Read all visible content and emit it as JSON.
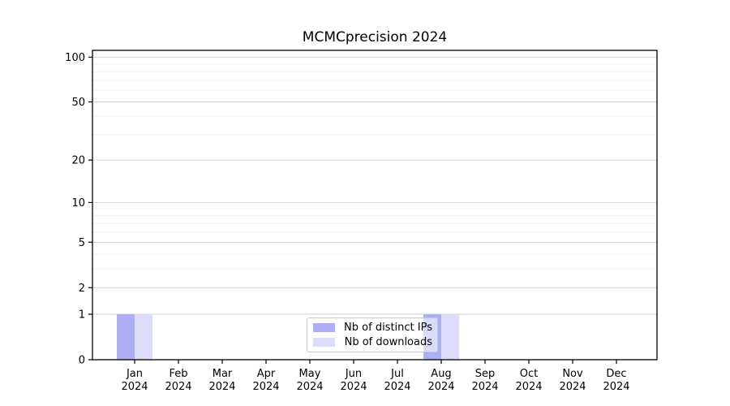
{
  "figure": {
    "title": "MCMCprecision 2024"
  },
  "chart_data": {
    "type": "bar",
    "title": "MCMCprecision 2024",
    "categories": [
      "Jan 2024",
      "Feb 2024",
      "Mar 2024",
      "Apr 2024",
      "May 2024",
      "Jun 2024",
      "Jul 2024",
      "Aug 2024",
      "Sep 2024",
      "Oct 2024",
      "Nov 2024",
      "Dec 2024"
    ],
    "series": [
      {
        "name": "Nb of distinct IPs",
        "color": "#aeaef6",
        "values": [
          1,
          0,
          0,
          0,
          0,
          0,
          0,
          1,
          0,
          0,
          0,
          0
        ]
      },
      {
        "name": "Nb of downloads",
        "color": "#dcdcf8",
        "values": [
          1,
          0,
          0,
          0,
          0,
          0,
          0,
          1,
          0,
          0,
          0,
          0
        ]
      }
    ],
    "xlabel": "",
    "ylabel": "",
    "yscale": "log1p",
    "ylim": [
      0,
      111
    ],
    "yticks": [
      0,
      1,
      2,
      5,
      10,
      20,
      50,
      100
    ],
    "yticks_minor": [
      3,
      4,
      6,
      7,
      8,
      9,
      30,
      40,
      60,
      70,
      80,
      90
    ],
    "grid": true,
    "legend": {
      "position": "lower center",
      "items": [
        "Nb of distinct IPs",
        "Nb of downloads"
      ]
    }
  },
  "colors": {
    "axis": "#000000",
    "major_grid": "#d2d2d2",
    "minor_grid": "#f0f0f0",
    "background": "#ffffff",
    "bar_distinct_ips": "#aeaef6",
    "bar_downloads": "#dcdcf8"
  }
}
